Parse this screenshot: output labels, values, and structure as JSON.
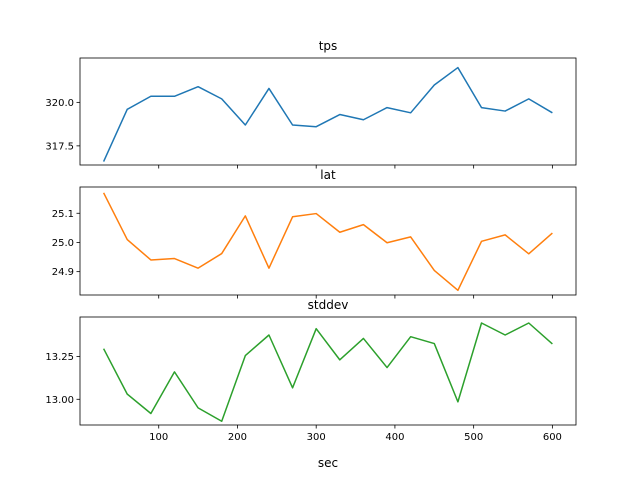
{
  "figure": {
    "xlabel": "sec",
    "x_ticks": [
      100,
      200,
      300,
      400,
      500,
      600
    ]
  },
  "chart_data": [
    {
      "type": "line",
      "title": "tps",
      "xlabel": "",
      "ylabel": "",
      "x": [
        30,
        60,
        90,
        120,
        150,
        180,
        210,
        240,
        270,
        300,
        330,
        360,
        390,
        420,
        450,
        480,
        510,
        540,
        570,
        600
      ],
      "series": [
        {
          "color": "#1f77b4",
          "values": [
            316.6,
            319.6,
            320.35,
            320.35,
            320.9,
            320.2,
            318.7,
            320.8,
            318.7,
            318.6,
            319.3,
            319.0,
            319.7,
            319.4,
            321.0,
            322.0,
            319.7,
            319.5,
            320.2,
            319.4
          ]
        }
      ],
      "xlim": [
        0,
        630
      ],
      "ylim": [
        316.4,
        322.55
      ],
      "y_ticks": [
        317.5,
        320.0
      ],
      "y_tick_labels": [
        "317.5",
        "320.0"
      ]
    },
    {
      "type": "line",
      "title": "lat",
      "xlabel": "",
      "ylabel": "",
      "x": [
        30,
        60,
        90,
        120,
        150,
        180,
        210,
        240,
        270,
        300,
        330,
        360,
        390,
        420,
        450,
        480,
        510,
        540,
        570,
        600
      ],
      "series": [
        {
          "color": "#ff7f0e",
          "values": [
            25.17,
            25.01,
            24.94,
            24.945,
            24.912,
            24.962,
            25.091,
            24.912,
            25.088,
            25.099,
            25.035,
            25.061,
            24.999,
            25.019,
            24.904,
            24.836,
            25.004,
            25.026,
            24.961,
            25.032
          ]
        }
      ],
      "xlim": [
        0,
        630
      ],
      "ylim": [
        24.82,
        25.19
      ],
      "y_ticks": [
        24.9,
        25.0,
        25.1
      ],
      "y_tick_labels": [
        "24.9",
        "25.0",
        "25.1"
      ]
    },
    {
      "type": "line",
      "title": "stddev",
      "xlabel": "sec",
      "ylabel": "",
      "x": [
        30,
        60,
        90,
        120,
        150,
        180,
        210,
        240,
        270,
        300,
        330,
        360,
        390,
        420,
        450,
        480,
        510,
        540,
        570,
        600
      ],
      "series": [
        {
          "color": "#2ca02c",
          "values": [
            13.295,
            13.03,
            12.917,
            13.16,
            12.95,
            12.872,
            13.255,
            13.375,
            13.067,
            13.412,
            13.23,
            13.355,
            13.185,
            13.365,
            13.325,
            12.985,
            13.445,
            13.375,
            13.445,
            13.323
          ]
        }
      ],
      "xlim": [
        0,
        630
      ],
      "ylim": [
        12.85,
        13.48
      ],
      "y_ticks": [
        13.0,
        13.25
      ],
      "y_tick_labels": [
        "13.00",
        "13.25"
      ]
    }
  ]
}
